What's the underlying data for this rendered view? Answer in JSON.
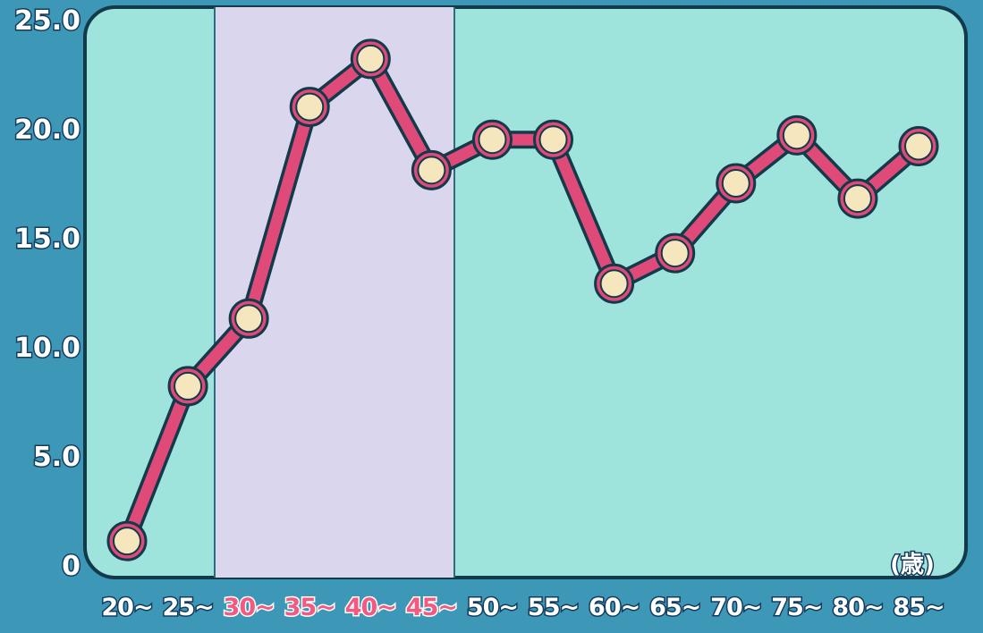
{
  "chart_data": {
    "type": "line",
    "title": "",
    "xlabel": "",
    "ylabel": "",
    "x_unit": "(歳)",
    "categories": [
      "20~",
      "25~",
      "30~",
      "35~",
      "40~",
      "45~",
      "50~",
      "55~",
      "60~",
      "65~",
      "70~",
      "75~",
      "80~",
      "85~"
    ],
    "highlighted_categories": [
      "30~",
      "35~",
      "40~",
      "45~"
    ],
    "series": [
      {
        "values": [
          1.1,
          8.2,
          11.3,
          21.0,
          23.2,
          18.1,
          19.5,
          19.5,
          12.9,
          14.3,
          17.5,
          19.7,
          16.8,
          19.2
        ]
      }
    ],
    "ylim": [
      0,
      25
    ],
    "yticks": [
      "0",
      "5.0",
      "10.0",
      "15.0",
      "20.0",
      "25.0"
    ],
    "grid": false,
    "colors": {
      "plot_bg": "#9fe3dd",
      "band_bg": "#d9d6ee",
      "line": "#e04a78",
      "marker": "#f5e6bd",
      "outline": "#123a4a"
    }
  }
}
